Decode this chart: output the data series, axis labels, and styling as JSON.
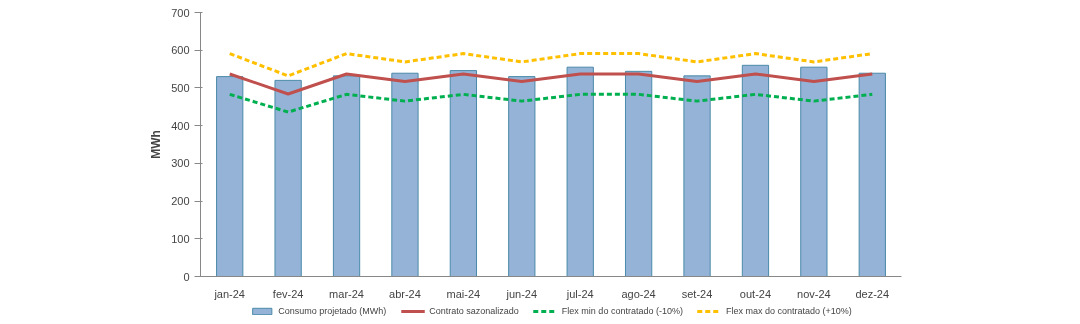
{
  "chart_data": {
    "type": "bar",
    "ylabel": "MWh",
    "categories": [
      "jan-24",
      "fev-24",
      "mar-24",
      "abr-24",
      "mai-24",
      "jun-24",
      "jul-24",
      "ago-24",
      "set-24",
      "out-24",
      "nov-24",
      "dez-24"
    ],
    "series": [
      {
        "name": "Consumo projetado (MWh)",
        "color": "#95b3d7",
        "values": [
          530,
          520,
          532,
          539,
          546,
          530,
          555,
          544,
          532,
          560,
          555,
          539
        ]
      },
      {
        "name": "Contrato sazonalizado",
        "type": "line",
        "line_style": "solid",
        "color": "#c0504d",
        "values": [
          537,
          484,
          537,
          517,
          537,
          517,
          537,
          537,
          517,
          537,
          517,
          537
        ]
      },
      {
        "name": "Flex min do contratado (-10%)",
        "type": "line",
        "line_style": "dashed",
        "color": "#00b050",
        "values": [
          483,
          436,
          483,
          465,
          483,
          465,
          483,
          483,
          465,
          483,
          465,
          483
        ]
      },
      {
        "name": "Flex max do contratado (+10%)",
        "type": "line",
        "line_style": "dashed",
        "color": "#ffc000",
        "values": [
          591,
          532,
          591,
          569,
          591,
          569,
          591,
          591,
          569,
          591,
          569,
          591
        ]
      }
    ],
    "ylim": [
      0,
      700
    ],
    "yticks": [
      0,
      100,
      200,
      300,
      400,
      500,
      600,
      700
    ],
    "grid": false,
    "legend": "bottom"
  }
}
